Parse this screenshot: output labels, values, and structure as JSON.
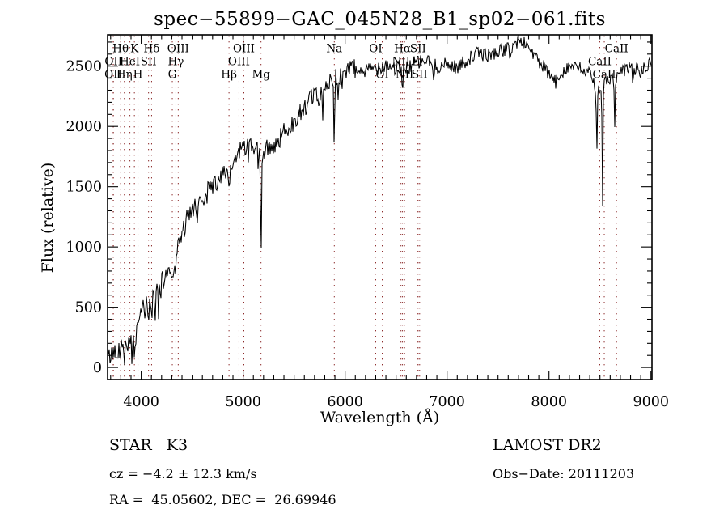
{
  "title": "spec−55899−GAC_045N28_B1_sp02−061.fits",
  "axes": {
    "xlabel": "Wavelength (Å)",
    "ylabel": "Flux (relative)"
  },
  "annotations": {
    "class_label": "STAR   K3",
    "survey": "LAMOST DR2",
    "cz": "cz = −4.2 ± 12.3 km/s",
    "obs_date": "Obs−Date: 20111203",
    "radec": "RA =  45.05602, DEC =  26.69946"
  },
  "chart_data": {
    "type": "line",
    "title": "spec−55899−GAC_045N28_B1_sp02−061.fits",
    "xlabel": "Wavelength (Å)",
    "ylabel": "Flux (relative)",
    "xlim": [
      3670,
      9010
    ],
    "ylim": [
      -100,
      2760
    ],
    "x_ticks": [
      4000,
      5000,
      6000,
      7000,
      8000,
      9000
    ],
    "y_ticks": [
      0,
      500,
      1000,
      1500,
      2000,
      2500
    ],
    "x_minor_step": 100,
    "y_minor_step": 100,
    "grid": false,
    "spectrum_color": "#000000",
    "marker_line_color": "#8b2828",
    "noise_seed": 42,
    "line_markers": [
      {
        "label": "Hθ",
        "wavelength": 3798,
        "row": 1
      },
      {
        "label": "K",
        "wavelength": 3933,
        "row": 1
      },
      {
        "label": "Hδ",
        "wavelength": 4102,
        "row": 1
      },
      {
        "label": "OIII",
        "wavelength": 4363,
        "row": 1
      },
      {
        "label": "OIII",
        "wavelength": 5007,
        "row": 1
      },
      {
        "label": "Na",
        "wavelength": 5894,
        "row": 1
      },
      {
        "label": "OI",
        "wavelength": 6300,
        "row": 1
      },
      {
        "label": "Hα",
        "wavelength": 6563,
        "row": 1
      },
      {
        "label": "SII",
        "wavelength": 6716,
        "row": 1
      },
      {
        "label": "CaII",
        "wavelength": 8662,
        "row": 1
      },
      {
        "label": "OII",
        "wavelength": 3727,
        "row": 2
      },
      {
        "label": "HeI",
        "wavelength": 3889,
        "row": 2
      },
      {
        "label": "SII",
        "wavelength": 4072,
        "row": 2
      },
      {
        "label": "Hγ",
        "wavelength": 4340,
        "row": 2
      },
      {
        "label": "OIII",
        "wavelength": 4959,
        "row": 2
      },
      {
        "label": "NII",
        "wavelength": 6548,
        "row": 2
      },
      {
        "label": "Li",
        "wavelength": 6707,
        "row": 2
      },
      {
        "label": "CaII",
        "wavelength": 8498,
        "row": 2
      },
      {
        "label": "OII",
        "wavelength": 3725,
        "row": 3
      },
      {
        "label": "Hη",
        "wavelength": 3835,
        "row": 3
      },
      {
        "label": "H",
        "wavelength": 3968,
        "row": 3
      },
      {
        "label": "G",
        "wavelength": 4305,
        "row": 3
      },
      {
        "label": "Hβ",
        "wavelength": 4861,
        "row": 3
      },
      {
        "label": "Mg",
        "wavelength": 5175,
        "row": 3
      },
      {
        "label": "OI",
        "wavelength": 6364,
        "row": 3
      },
      {
        "label": "NII",
        "wavelength": 6583,
        "row": 3
      },
      {
        "label": "SII",
        "wavelength": 6731,
        "row": 3
      },
      {
        "label": "CaII",
        "wavelength": 8542,
        "row": 3
      }
    ],
    "spectrum_envelope": [
      [
        3690,
        90
      ],
      [
        3720,
        110
      ],
      [
        3750,
        170
      ],
      [
        3780,
        150
      ],
      [
        3810,
        190
      ],
      [
        3840,
        175
      ],
      [
        3870,
        215
      ],
      [
        3900,
        185
      ],
      [
        3930,
        195
      ],
      [
        3960,
        300
      ],
      [
        4000,
        460
      ],
      [
        4050,
        505
      ],
      [
        4100,
        545
      ],
      [
        4150,
        605
      ],
      [
        4200,
        680
      ],
      [
        4250,
        790
      ],
      [
        4300,
        835
      ],
      [
        4350,
        950
      ],
      [
        4400,
        1120
      ],
      [
        4450,
        1220
      ],
      [
        4500,
        1290
      ],
      [
        4550,
        1335
      ],
      [
        4600,
        1395
      ],
      [
        4650,
        1455
      ],
      [
        4700,
        1510
      ],
      [
        4750,
        1550
      ],
      [
        4800,
        1590
      ],
      [
        4850,
        1610
      ],
      [
        4900,
        1690
      ],
      [
        4950,
        1770
      ],
      [
        5000,
        1845
      ],
      [
        5060,
        1835
      ],
      [
        5120,
        1805
      ],
      [
        5200,
        1795
      ],
      [
        5260,
        1830
      ],
      [
        5350,
        1880
      ],
      [
        5400,
        1950
      ],
      [
        5450,
        2010
      ],
      [
        5500,
        2060
      ],
      [
        5550,
        2110
      ],
      [
        5600,
        2160
      ],
      [
        5650,
        2210
      ],
      [
        5700,
        2260
      ],
      [
        5750,
        2235
      ],
      [
        5800,
        2300
      ],
      [
        5850,
        2390
      ],
      [
        5900,
        2415
      ],
      [
        5950,
        2430
      ],
      [
        6000,
        2450
      ],
      [
        6100,
        2490
      ],
      [
        6200,
        2455
      ],
      [
        6300,
        2490
      ],
      [
        6400,
        2520
      ],
      [
        6500,
        2480
      ],
      [
        6600,
        2485
      ],
      [
        6700,
        2530
      ],
      [
        6800,
        2545
      ],
      [
        6900,
        2500
      ],
      [
        7000,
        2510
      ],
      [
        7100,
        2490
      ],
      [
        7200,
        2555
      ],
      [
        7300,
        2610
      ],
      [
        7400,
        2590
      ],
      [
        7500,
        2620
      ],
      [
        7600,
        2645
      ],
      [
        7700,
        2705
      ],
      [
        7780,
        2685
      ],
      [
        7850,
        2600
      ],
      [
        7900,
        2530
      ],
      [
        7960,
        2470
      ],
      [
        8030,
        2400
      ],
      [
        8070,
        2360
      ],
      [
        8120,
        2450
      ],
      [
        8200,
        2505
      ],
      [
        8300,
        2480
      ],
      [
        8400,
        2430
      ],
      [
        8470,
        2300
      ],
      [
        8530,
        2350
      ],
      [
        8600,
        2400
      ],
      [
        8650,
        2380
      ],
      [
        8700,
        2440
      ],
      [
        8800,
        2500
      ],
      [
        8900,
        2450
      ],
      [
        9000,
        2520
      ]
    ],
    "noise_amplitude": [
      [
        3690,
        85
      ],
      [
        3950,
        95
      ],
      [
        4000,
        105
      ],
      [
        4400,
        95
      ],
      [
        5000,
        85
      ],
      [
        5500,
        80
      ],
      [
        6000,
        75
      ],
      [
        6600,
        65
      ],
      [
        7000,
        60
      ],
      [
        7600,
        55
      ],
      [
        8000,
        58
      ],
      [
        8500,
        55
      ],
      [
        9000,
        58
      ]
    ],
    "absorption_features": [
      [
        3798,
        100,
        3
      ],
      [
        3835,
        120,
        3
      ],
      [
        3889,
        140,
        3
      ],
      [
        3933,
        170,
        3
      ],
      [
        3968,
        110,
        3
      ],
      [
        4072,
        90,
        3
      ],
      [
        4102,
        150,
        4
      ],
      [
        4305,
        130,
        5
      ],
      [
        4340,
        170,
        4
      ],
      [
        4861,
        210,
        5
      ],
      [
        5175,
        720,
        6
      ],
      [
        5780,
        150,
        5
      ],
      [
        5894,
        680,
        4
      ],
      [
        6563,
        240,
        5
      ],
      [
        6867,
        140,
        7
      ],
      [
        7620,
        70,
        7
      ],
      [
        8468,
        520,
        4
      ],
      [
        8525,
        1090,
        4
      ],
      [
        8645,
        400,
        4
      ],
      [
        8822,
        130,
        5
      ]
    ]
  }
}
